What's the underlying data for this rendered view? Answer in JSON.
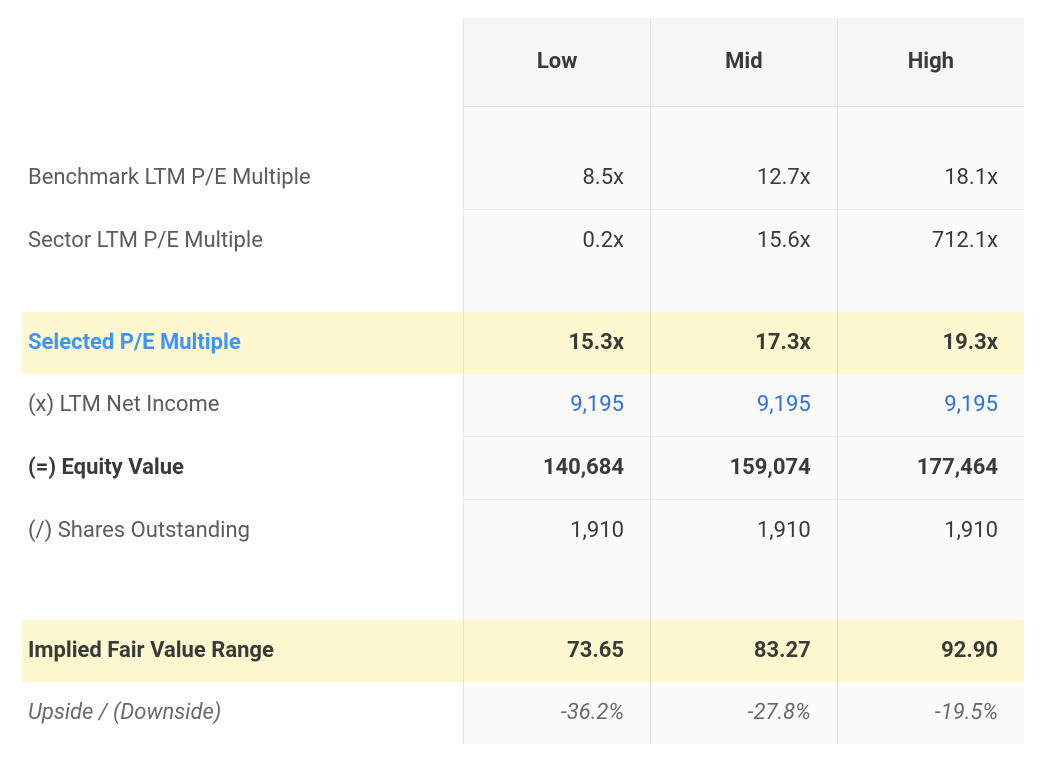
{
  "table": {
    "columns": [
      "Low",
      "Mid",
      "High"
    ],
    "col_bg": "#fbfbfb",
    "header_bg": "#f6f6f6",
    "highlight_bg": "#fdf8cf",
    "border_color": "#e6e6e6",
    "text_color": "#3a3a3a",
    "muted_text_color": "#5c5c5c",
    "link_blue": "#2f6fe0",
    "accent_blue": "#3d96f7",
    "font_size_pt": 16,
    "rows": {
      "benchmark": {
        "label": "Benchmark LTM P/E Multiple",
        "values": [
          "8.5x",
          "12.7x",
          "18.1x"
        ]
      },
      "sector": {
        "label": "Sector LTM P/E Multiple",
        "values": [
          "0.2x",
          "15.6x",
          "712.1x"
        ]
      },
      "selected": {
        "label": "Selected P/E Multiple",
        "values": [
          "15.3x",
          "17.3x",
          "19.3x"
        ]
      },
      "net_income": {
        "label": "(x) LTM Net Income",
        "values": [
          "9,195",
          "9,195",
          "9,195"
        ]
      },
      "equity_value": {
        "label": "(=) Equity Value",
        "values": [
          "140,684",
          "159,074",
          "177,464"
        ]
      },
      "shares": {
        "label": "(/) Shares Outstanding",
        "values": [
          "1,910",
          "1,910",
          "1,910"
        ]
      },
      "fair_value": {
        "label": "Implied Fair Value Range",
        "values": [
          "73.65",
          "83.27",
          "92.90"
        ]
      },
      "upside": {
        "label": "Upside / (Downside)",
        "values": [
          "-36.2%",
          "-27.8%",
          "-19.5%"
        ]
      }
    }
  }
}
